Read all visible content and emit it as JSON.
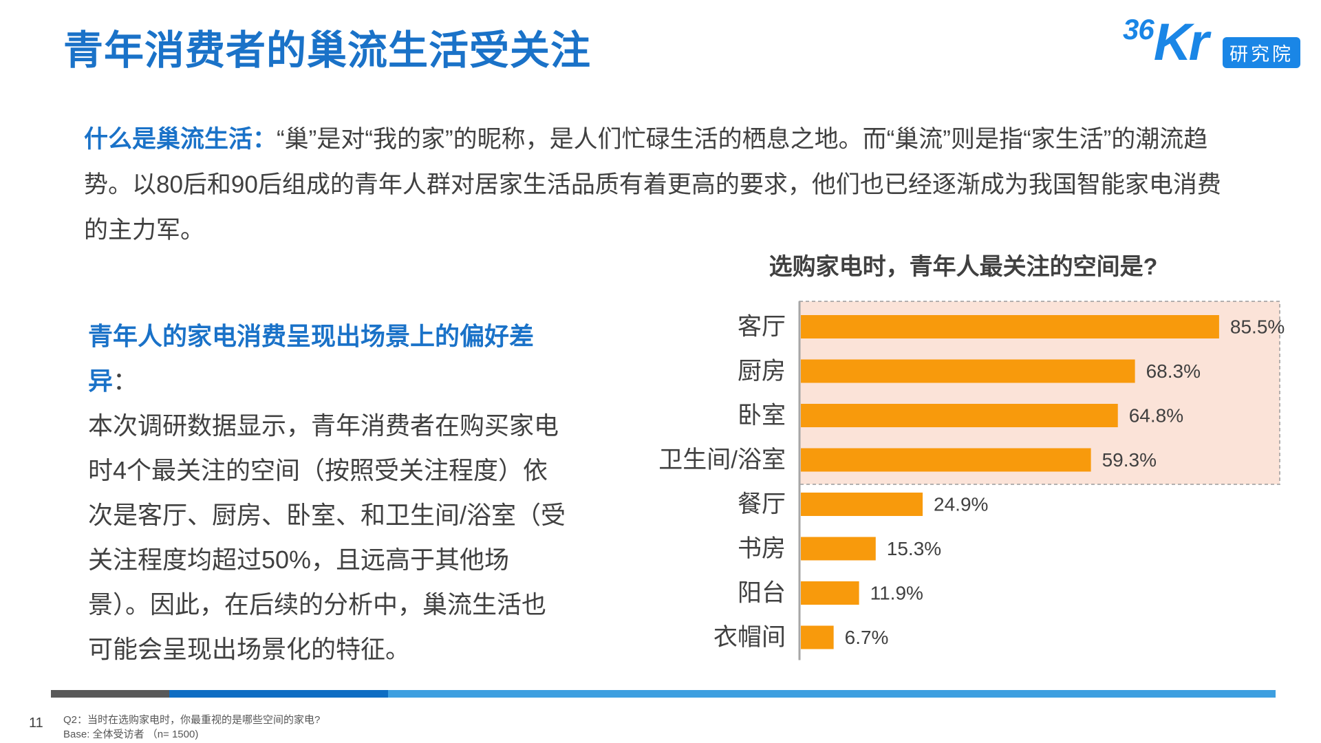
{
  "header": {
    "title": "青年消费者的巢流生活受关注",
    "logo_mark": "36Kr",
    "logo_mark_small": "36",
    "logo_mark_big": "Kr",
    "logo_badge": "研究院"
  },
  "intro": {
    "lead": "什么是巢流生活：",
    "text": "“巢”是对“我的家”的昵称，是人们忙碌生活的栖息之地。而“巢流”则是指“家生活”的潮流趋势。以80后和90后组成的青年人群对居家生活品质有着更高的要求，他们也已经逐渐成为我国智能家电消费的主力军。"
  },
  "finding": {
    "lead": "青年人的家电消费呈现出场景上的偏好差异",
    "colon": "：",
    "text": "本次调研数据显示，青年消费者在购买家电时4个最关注的空间（按照受关注程度）依次是客厅、厨房、卧室、和卫生间/浴室（受关注程度均超过50%，且远高于其他场景）。因此，在后续的分析中，巢流生活也可能会呈现出场景化的特征。"
  },
  "chart_data": {
    "type": "bar",
    "orientation": "horizontal",
    "title": "选购家电时，青年人最关注的空间是?",
    "categories": [
      "客厅",
      "厨房",
      "卧室",
      "卫生间/浴室",
      "餐厅",
      "书房",
      "阳台",
      "衣帽间"
    ],
    "values": [
      85.5,
      68.3,
      64.8,
      59.3,
      24.9,
      15.3,
      11.9,
      6.7
    ],
    "value_labels": [
      "85.5%",
      "68.3%",
      "64.8%",
      "59.3%",
      "24.9%",
      "15.3%",
      "11.9%",
      "6.7%"
    ],
    "unit": "%",
    "xlim": [
      0,
      100
    ],
    "highlighted_top_n": 4,
    "bar_color": "#f89a0c",
    "highlight_box_color": "#fbe3d8"
  },
  "colors": {
    "title_blue": "#1a72c8",
    "logo_blue": "#1a86e6",
    "bar_gray": "#595959",
    "bar_blue": "#0e6dc3",
    "bar_light_blue": "#3d9fe0"
  },
  "footer": {
    "page_number": "11",
    "question": "Q2：当时在选购家电时，你最重视的是哪些空间的家电?",
    "base": "Base: 全体受访者 （n= 1500)"
  }
}
